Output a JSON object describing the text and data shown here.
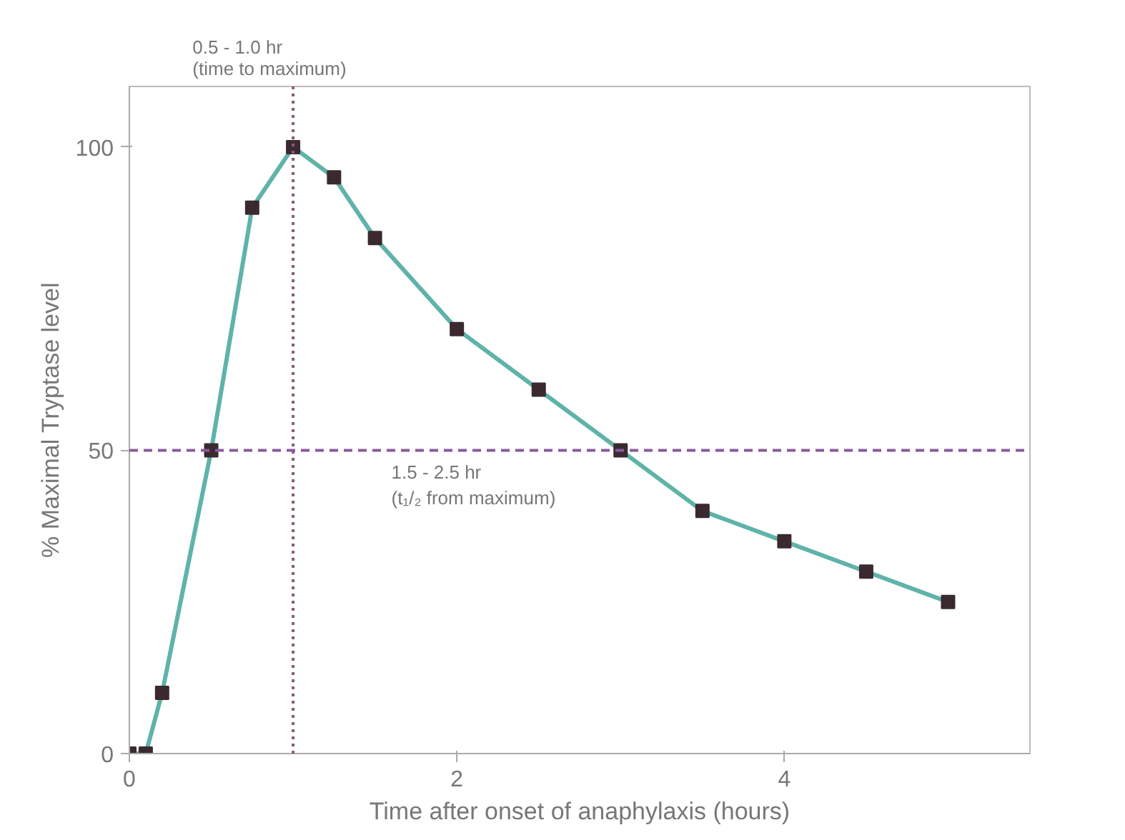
{
  "chart_data": {
    "type": "line",
    "xlabel": "Time after onset of anaphylaxis (hours)",
    "ylabel": "% Maximal Tryptase level",
    "x": [
      0,
      0.1,
      0.2,
      0.5,
      0.75,
      1.0,
      1.25,
      1.5,
      2.0,
      2.5,
      3.0,
      3.5,
      4.0,
      4.5,
      5.0
    ],
    "series": [
      {
        "color": "#5fb3a8",
        "values": [
          0,
          0,
          10,
          50,
          90,
          100,
          95,
          85,
          70,
          60,
          50,
          40,
          35,
          30,
          25
        ]
      }
    ],
    "marker": "square",
    "line_style": "solid",
    "xlim": [
      0,
      5.5
    ],
    "ylim": [
      0,
      110
    ],
    "xticks": [
      0,
      2,
      4
    ],
    "yticks": [
      0,
      50,
      100
    ],
    "grid": false,
    "ref_lines": [
      {
        "axis": "x",
        "value": 1,
        "label": "0.5 - 1.0 hr\n(time to maximum)",
        "color": "#8a5a7a",
        "line_style": "dotted"
      },
      {
        "axis": "y",
        "value": 50,
        "label": "1.5 - 2.5 hr\n(t₁/₂ from maximum)",
        "color": "#8a5a9a",
        "line_style": "dashed"
      }
    ]
  }
}
